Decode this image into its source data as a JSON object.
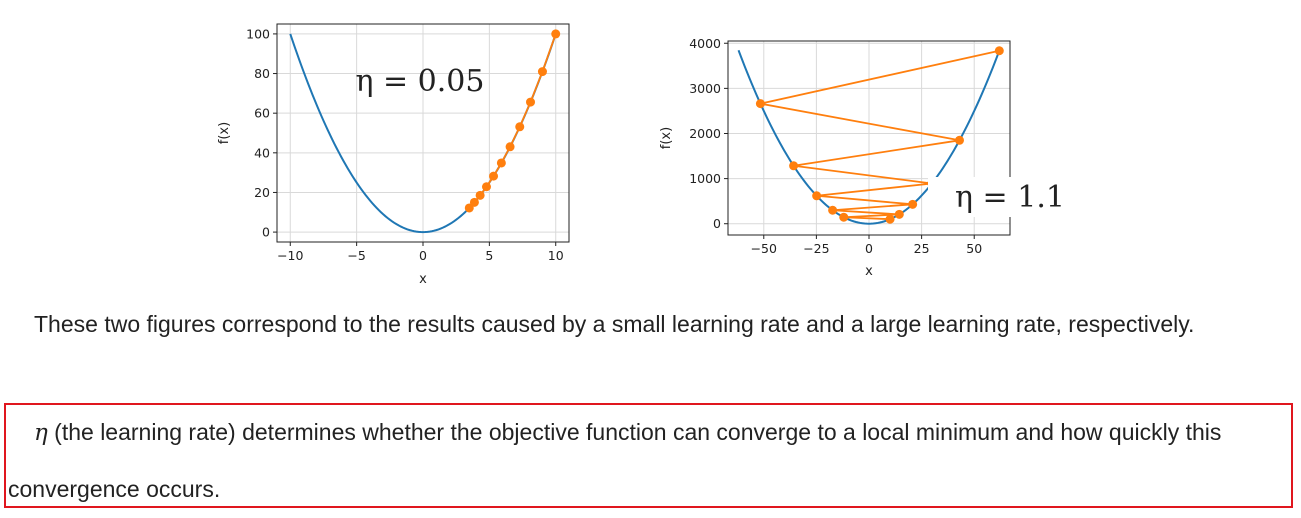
{
  "chart_data": [
    {
      "type": "line",
      "title": "",
      "xlabel": "x",
      "ylabel": "f(x)",
      "xlim": [
        -11,
        11
      ],
      "ylim": [
        -5,
        105
      ],
      "xticks": [
        -10,
        -5,
        0,
        5,
        10
      ],
      "xtick_labels": [
        "−10",
        "−5",
        "0",
        "5",
        "10"
      ],
      "yticks": [
        0,
        20,
        40,
        60,
        80,
        100
      ],
      "ytick_labels": [
        "0",
        "20",
        "40",
        "60",
        "80",
        "100"
      ],
      "grid": true,
      "annotation": "η = 0.05",
      "series": [
        {
          "kind": "curve",
          "function": "x^2",
          "x_range": [
            -10,
            10
          ],
          "color": "#1f77b4"
        },
        {
          "kind": "trajectory",
          "color": "#ff7f0e",
          "x": [
            10,
            9,
            8.1,
            7.29,
            6.561,
            5.905,
            5.314,
            4.783,
            4.305,
            3.874,
            3.487
          ],
          "y": [
            100,
            81,
            65.61,
            53.14,
            43.05,
            34.87,
            28.24,
            22.88,
            18.53,
            15.01,
            12.16
          ]
        }
      ]
    },
    {
      "type": "line",
      "title": "",
      "xlabel": "x",
      "ylabel": "f(x)",
      "xlim": [
        -67,
        67
      ],
      "ylim": [
        -250,
        4050
      ],
      "xticks": [
        -50,
        -25,
        0,
        25,
        50
      ],
      "xtick_labels": [
        "−50",
        "−25",
        "0",
        "25",
        "50"
      ],
      "yticks": [
        0,
        1000,
        2000,
        3000,
        4000
      ],
      "ytick_labels": [
        "0",
        "1000",
        "2000",
        "3000",
        "4000"
      ],
      "grid": true,
      "annotation": "η = 1.1",
      "series": [
        {
          "kind": "curve",
          "function": "x^2",
          "x_range": [
            -62,
            62
          ],
          "color": "#1f77b4"
        },
        {
          "kind": "trajectory",
          "color": "#ff7f0e",
          "x": [
            61.92,
            -51.6,
            43.0,
            -35.83,
            29.86,
            -24.88,
            20.74,
            -17.28,
            14.4,
            -12.0,
            10.0
          ],
          "y": [
            3834,
            2662,
            1849,
            1284,
            891.6,
            619.2,
            430.0,
            298.6,
            207.4,
            144.0,
            100.0
          ]
        }
      ]
    }
  ],
  "text": {
    "para1": "These two figures correspond to the results caused by a small learning rate and a large learning rate, respectively.",
    "eta": "η",
    "para2": " (the learning rate) determines whether the objective function can converge to a local minimum and how quickly this convergence occurs."
  },
  "colors": {
    "curve": "#1f77b4",
    "trajectory": "#ff7f0e",
    "highlight_border": "#e0161e"
  }
}
